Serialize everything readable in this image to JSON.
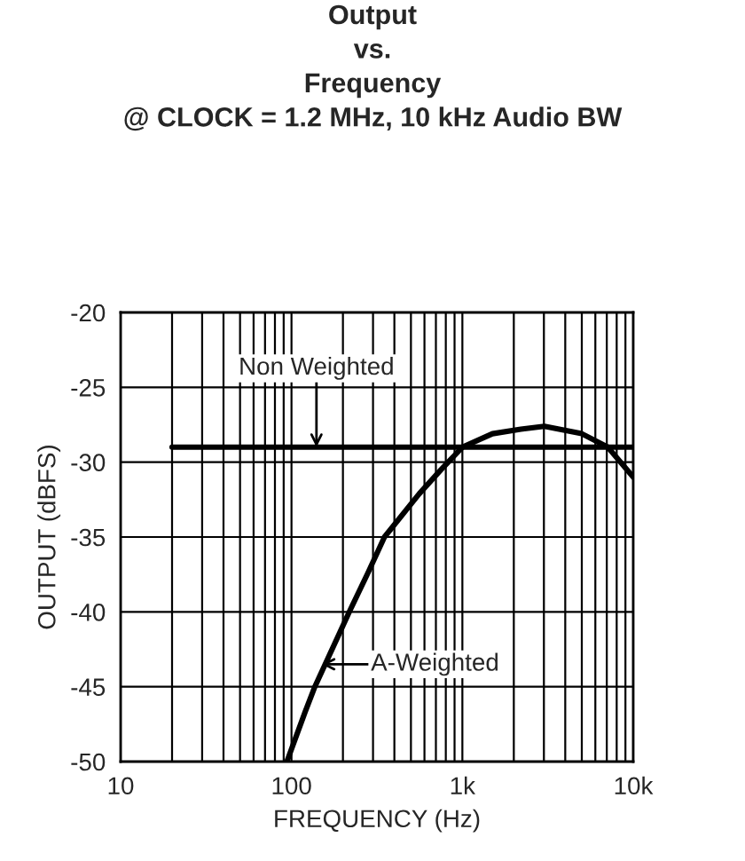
{
  "chart_data": {
    "type": "line",
    "title": "Output\nvs.\nFrequency\n@ CLOCK = 1.2 MHz, 10 kHz Audio BW",
    "xlabel": "FREQUENCY (Hz)",
    "ylabel": "OUTPUT (dBFS)",
    "series": [
      {
        "color": "#000000",
        "x": [
          20,
          10000
        ],
        "values": [
          -29,
          -29
        ]
      },
      {
        "color": "#000000",
        "x": [
          94,
          120,
          137,
          218,
          280,
          350,
          560,
          750,
          1000,
          1500,
          2200,
          3020,
          5000,
          7100,
          10000
        ],
        "values": [
          -50,
          -46.7,
          -45,
          -40,
          -37.4,
          -35,
          -32.1,
          -30.5,
          -29,
          -28.1,
          -27.8,
          -27.6,
          -28.1,
          -29,
          -31
        ]
      }
    ],
    "annotations": [
      {
        "text": "Non Weighted",
        "x": 140,
        "y": -29
      },
      {
        "text": "A-Weighted",
        "x": 150,
        "y": -43.5
      }
    ],
    "log": "x",
    "xlim": [
      10,
      10000
    ],
    "xticks": [
      10,
      100,
      {
        "value": 1000,
        "label": "1k"
      },
      {
        "value": 10000,
        "label": "10k"
      }
    ],
    "ylim": [
      -50,
      -20
    ],
    "yticks": [
      -50,
      -45,
      -40,
      -35,
      -30,
      -25,
      -20
    ],
    "grid": true,
    "line_style": "solid",
    "legend": false
  }
}
